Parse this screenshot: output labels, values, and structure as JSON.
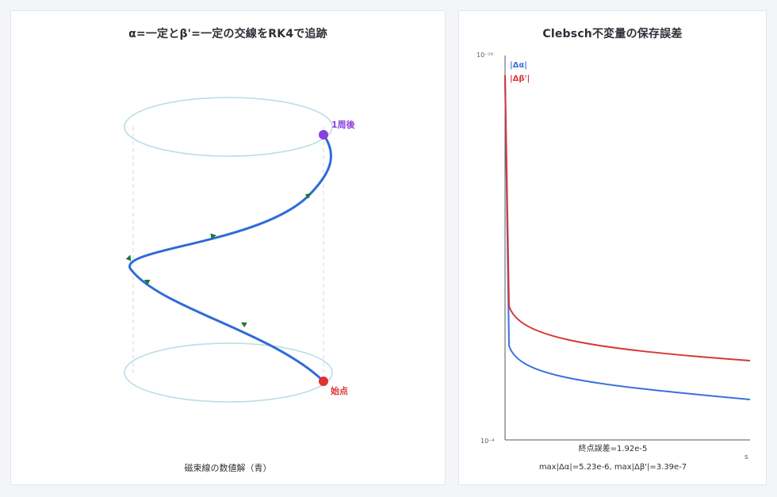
{
  "left_panel": {
    "title": "α=一定とβ'=一定の交線をRK4で追跡",
    "caption": "磁束線の数値解（青）",
    "end_label": "1周後",
    "start_label": "始点",
    "colors": {
      "curve": "#2f6bd8",
      "cylinder": "#b9dde6",
      "guide": "#d3d7dc",
      "arrow": "#1a7a2e",
      "end_point": "#8a3fe0",
      "start_point": "#e03030"
    }
  },
  "right_panel": {
    "title": "Clebsch不変量の保存誤差",
    "y_top_label": "10⁻¹⁶",
    "y_bottom_label": "10⁻⁴",
    "x_label": "s",
    "final_error_text": "終点誤差=1.92e-5",
    "max_text": "max|Δα|=5.23e-6, max|Δβ'|=3.39e-7",
    "chart_data": {
      "type": "line",
      "xlabel": "s",
      "legend_position": "top-left",
      "series": [
        {
          "name": "|Δα|",
          "color": "#3a6fe0"
        },
        {
          "name": "|Δβ'|",
          "color": "#d83636"
        }
      ]
    }
  }
}
